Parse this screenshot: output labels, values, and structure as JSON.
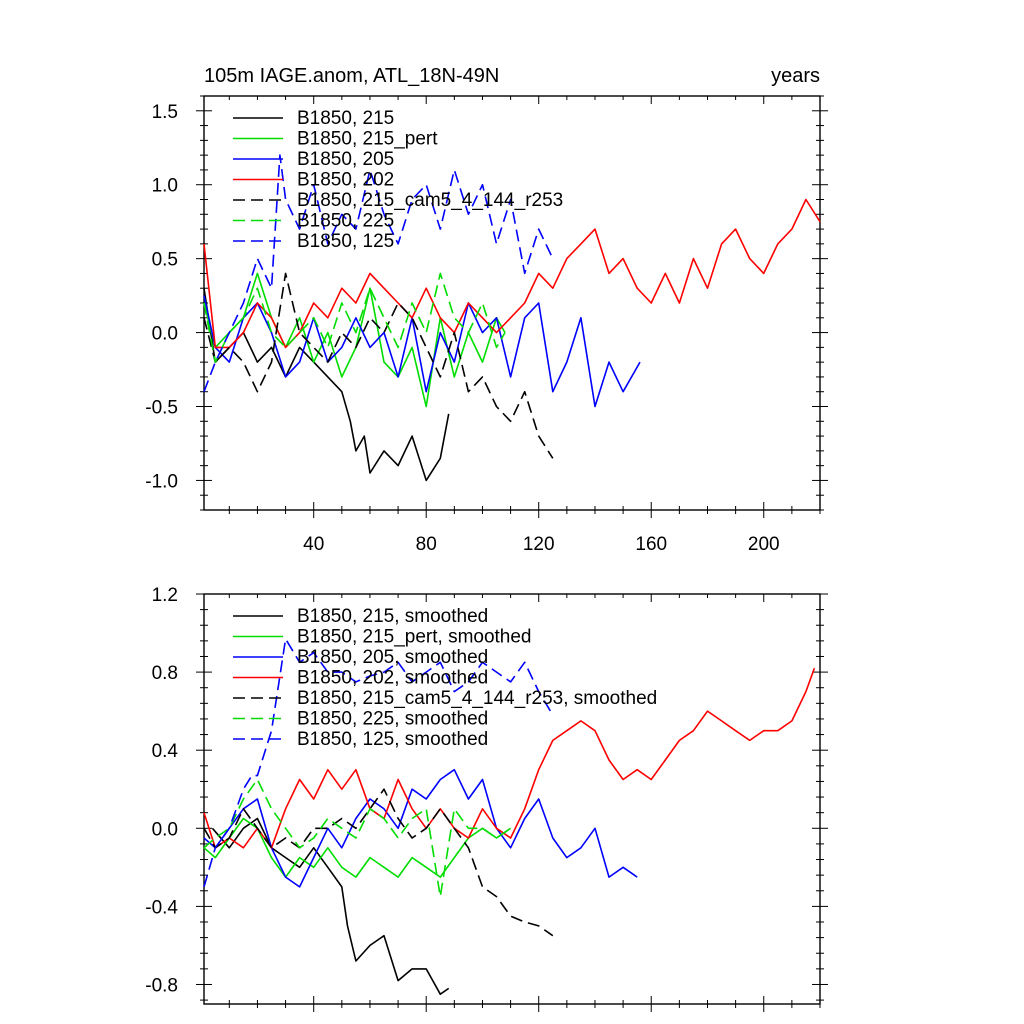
{
  "figure": {
    "title_left": "105m IAGE.anom, ATL_18N-49N",
    "title_right": "years"
  },
  "chart_data": [
    {
      "type": "line",
      "panel": "top",
      "title": "105m IAGE.anom, ATL_18N-49N",
      "xlabel": "years",
      "ylabel": "",
      "xlim": [
        1,
        220
      ],
      "ylim": [
        -1.2,
        1.6
      ],
      "xticks": [
        40,
        80,
        120,
        160,
        200
      ],
      "xtick_labels": [
        "40",
        "80",
        "120",
        "160",
        "200"
      ],
      "yticks": [
        -1.0,
        -0.5,
        0.0,
        0.5,
        1.0,
        1.5
      ],
      "ytick_labels": [
        "-1.0",
        "-0.5",
        "0.0",
        "0.5",
        "1.0",
        "1.5"
      ],
      "legend_position": "top-left",
      "series": [
        {
          "name": "B1850, 215",
          "color": "#000000",
          "dash": "solid",
          "x": [
            1,
            5,
            10,
            15,
            20,
            25,
            30,
            35,
            40,
            45,
            50,
            53,
            55,
            58,
            60,
            65,
            70,
            75,
            80,
            85,
            88
          ],
          "y": [
            0.3,
            -0.2,
            -0.1,
            0.0,
            -0.2,
            -0.1,
            -0.3,
            -0.1,
            -0.2,
            -0.3,
            -0.4,
            -0.6,
            -0.8,
            -0.7,
            -0.95,
            -0.8,
            -0.9,
            -0.7,
            -1.0,
            -0.85,
            -0.55
          ]
        },
        {
          "name": "B1850, 215_pert",
          "color": "#00dd00",
          "dash": "solid",
          "x": [
            1,
            5,
            10,
            15,
            20,
            25,
            30,
            35,
            40,
            45,
            50,
            55,
            60,
            65,
            70,
            75,
            80,
            85,
            90,
            95,
            100,
            105,
            108
          ],
          "y": [
            0.2,
            -0.1,
            0.0,
            0.1,
            0.4,
            0.1,
            -0.1,
            0.1,
            -0.2,
            0.0,
            -0.3,
            -0.1,
            0.3,
            -0.2,
            -0.3,
            -0.1,
            -0.5,
            0.1,
            -0.3,
            0.0,
            -0.2,
            0.1,
            0.0
          ]
        },
        {
          "name": "B1850, 205",
          "color": "#0000ff",
          "dash": "solid",
          "x": [
            1,
            5,
            10,
            15,
            20,
            25,
            30,
            35,
            40,
            45,
            50,
            55,
            60,
            65,
            70,
            75,
            80,
            85,
            90,
            95,
            100,
            105,
            110,
            115,
            120,
            125,
            130,
            135,
            140,
            145,
            150,
            156
          ],
          "y": [
            0.25,
            -0.1,
            -0.2,
            0.1,
            0.2,
            0.0,
            -0.3,
            -0.2,
            0.1,
            -0.2,
            -0.1,
            0.1,
            -0.1,
            0.0,
            -0.3,
            0.1,
            -0.4,
            0.0,
            -0.2,
            0.2,
            0.0,
            0.1,
            -0.3,
            0.1,
            0.2,
            -0.4,
            -0.2,
            0.1,
            -0.5,
            -0.2,
            -0.4,
            -0.2
          ]
        },
        {
          "name": "B1850, 202",
          "color": "#ff0000",
          "dash": "solid",
          "x": [
            1,
            5,
            10,
            15,
            20,
            25,
            30,
            35,
            40,
            45,
            50,
            55,
            60,
            65,
            70,
            75,
            80,
            85,
            90,
            95,
            100,
            105,
            110,
            115,
            120,
            125,
            130,
            135,
            140,
            145,
            150,
            155,
            160,
            165,
            170,
            175,
            180,
            185,
            190,
            195,
            200,
            205,
            210,
            215,
            220
          ],
          "y": [
            0.6,
            -0.1,
            -0.1,
            0.0,
            0.2,
            0.1,
            -0.1,
            0.0,
            0.2,
            0.1,
            0.3,
            0.2,
            0.4,
            0.3,
            0.2,
            0.1,
            0.3,
            0.1,
            0.0,
            0.2,
            0.1,
            0.0,
            0.1,
            0.2,
            0.4,
            0.3,
            0.5,
            0.6,
            0.7,
            0.4,
            0.5,
            0.3,
            0.2,
            0.4,
            0.2,
            0.5,
            0.3,
            0.6,
            0.7,
            0.5,
            0.4,
            0.6,
            0.7,
            0.9,
            0.75
          ]
        },
        {
          "name": "B1850, 215_cam5_4_144_r253",
          "color": "#000000",
          "dash": "dashed",
          "x": [
            1,
            5,
            10,
            15,
            20,
            25,
            30,
            35,
            40,
            45,
            50,
            55,
            60,
            65,
            70,
            75,
            80,
            85,
            90,
            95,
            100,
            105,
            110,
            115,
            120,
            125
          ],
          "y": [
            0.1,
            -0.2,
            -0.1,
            -0.2,
            -0.4,
            -0.2,
            0.4,
            0.0,
            -0.1,
            -0.2,
            0.0,
            -0.1,
            0.1,
            0.0,
            0.2,
            0.1,
            -0.1,
            -0.3,
            0.0,
            -0.4,
            -0.3,
            -0.5,
            -0.6,
            -0.4,
            -0.7,
            -0.85
          ]
        },
        {
          "name": "B1850, 225",
          "color": "#00dd00",
          "dash": "dashed",
          "x": [
            1,
            5,
            10,
            15,
            20,
            25,
            30,
            35,
            40,
            45,
            50,
            55,
            60,
            65,
            70,
            75,
            80,
            85,
            90,
            95,
            100,
            105,
            108
          ],
          "y": [
            0.2,
            -0.2,
            0.0,
            0.1,
            0.3,
            0.0,
            -0.1,
            0.0,
            0.1,
            -0.1,
            0.2,
            0.0,
            0.3,
            0.1,
            -0.1,
            0.2,
            0.0,
            0.4,
            0.1,
            0.0,
            0.2,
            -0.1,
            0.0
          ]
        },
        {
          "name": "B1850, 125",
          "color": "#0000ff",
          "dash": "dashed",
          "x": [
            1,
            5,
            10,
            15,
            20,
            25,
            28,
            30,
            35,
            40,
            45,
            50,
            55,
            60,
            65,
            70,
            75,
            80,
            85,
            90,
            95,
            100,
            105,
            110,
            115,
            120,
            125
          ],
          "y": [
            -0.4,
            -0.2,
            0.0,
            0.2,
            0.5,
            0.3,
            1.2,
            0.9,
            0.7,
            1.0,
            0.6,
            0.8,
            0.7,
            1.1,
            0.8,
            0.6,
            0.9,
            1.0,
            0.7,
            1.1,
            0.8,
            1.0,
            0.6,
            0.9,
            0.4,
            0.7,
            0.5
          ]
        }
      ]
    },
    {
      "type": "line",
      "panel": "bottom",
      "title": "",
      "xlabel": "",
      "ylabel": "",
      "xlim": [
        1,
        220
      ],
      "ylim": [
        -0.9,
        1.2
      ],
      "xticks": [
        40,
        80,
        120,
        160,
        200
      ],
      "xtick_labels": [],
      "yticks": [
        -0.8,
        -0.4,
        0.0,
        0.4,
        0.8,
        1.2
      ],
      "ytick_labels": [
        "-0.8",
        "-0.4",
        "0.0",
        "0.4",
        "0.8",
        "1.2"
      ],
      "legend_position": "top-left",
      "series": [
        {
          "name": "B1850, 215, smoothed",
          "color": "#000000",
          "dash": "solid",
          "x": [
            4,
            10,
            15,
            20,
            25,
            30,
            35,
            40,
            45,
            50,
            52,
            55,
            60,
            65,
            70,
            75,
            80,
            85,
            88
          ],
          "y": [
            0.0,
            -0.1,
            0.0,
            0.05,
            -0.1,
            -0.15,
            -0.2,
            -0.1,
            -0.2,
            -0.3,
            -0.5,
            -0.68,
            -0.6,
            -0.55,
            -0.78,
            -0.72,
            -0.72,
            -0.85,
            -0.82
          ]
        },
        {
          "name": "B1850, 215_pert, smoothed",
          "color": "#00dd00",
          "dash": "solid",
          "x": [
            1,
            5,
            10,
            15,
            20,
            25,
            30,
            35,
            40,
            45,
            50,
            55,
            60,
            65,
            70,
            75,
            80,
            85,
            90,
            95,
            100,
            105,
            110
          ],
          "y": [
            -0.1,
            -0.15,
            -0.05,
            0.05,
            0.0,
            -0.15,
            -0.25,
            -0.15,
            -0.2,
            -0.1,
            -0.2,
            -0.25,
            -0.15,
            -0.2,
            -0.25,
            -0.15,
            -0.2,
            -0.25,
            -0.15,
            -0.05,
            0.0,
            -0.05,
            0.0
          ]
        },
        {
          "name": "B1850, 205, smoothed",
          "color": "#0000ff",
          "dash": "solid",
          "x": [
            1,
            5,
            10,
            15,
            20,
            25,
            30,
            35,
            40,
            45,
            50,
            55,
            60,
            65,
            70,
            75,
            80,
            85,
            90,
            95,
            100,
            105,
            110,
            115,
            120,
            125,
            130,
            135,
            140,
            145,
            150,
            155
          ],
          "y": [
            -0.05,
            -0.1,
            0.0,
            0.1,
            0.15,
            -0.1,
            -0.25,
            -0.3,
            -0.15,
            0.0,
            -0.1,
            0.05,
            0.15,
            0.1,
            0.0,
            0.2,
            0.15,
            0.25,
            0.3,
            0.15,
            0.25,
            0.0,
            -0.1,
            0.05,
            0.15,
            -0.05,
            -0.15,
            -0.1,
            0.0,
            -0.25,
            -0.2,
            -0.25
          ]
        },
        {
          "name": "B1850, 202, smoothed",
          "color": "#ff0000",
          "dash": "solid",
          "x": [
            1,
            5,
            10,
            15,
            20,
            25,
            30,
            35,
            40,
            45,
            50,
            55,
            60,
            65,
            70,
            75,
            80,
            85,
            90,
            95,
            100,
            105,
            110,
            115,
            120,
            125,
            130,
            135,
            140,
            145,
            150,
            155,
            160,
            165,
            170,
            175,
            180,
            185,
            190,
            195,
            200,
            205,
            210,
            215,
            218
          ],
          "y": [
            0.08,
            -0.1,
            -0.05,
            -0.1,
            0.0,
            -0.1,
            0.1,
            0.25,
            0.15,
            0.3,
            0.2,
            0.3,
            0.1,
            0.05,
            0.25,
            0.1,
            0.0,
            0.1,
            0.0,
            -0.05,
            0.1,
            0.0,
            -0.05,
            0.1,
            0.3,
            0.45,
            0.5,
            0.55,
            0.5,
            0.35,
            0.25,
            0.3,
            0.25,
            0.35,
            0.45,
            0.5,
            0.6,
            0.55,
            0.5,
            0.45,
            0.5,
            0.5,
            0.55,
            0.7,
            0.82
          ]
        },
        {
          "name": "B1850, 215_cam5_4_144_r253, smoothed",
          "color": "#000000",
          "dash": "dashed",
          "x": [
            1,
            5,
            10,
            15,
            20,
            25,
            30,
            35,
            40,
            45,
            50,
            55,
            60,
            65,
            70,
            75,
            80,
            85,
            90,
            95,
            100,
            105,
            110,
            115,
            120,
            125
          ],
          "y": [
            0.0,
            -0.1,
            -0.05,
            0.1,
            0.0,
            -0.1,
            -0.05,
            -0.1,
            0.0,
            0.0,
            0.05,
            0.0,
            0.1,
            0.2,
            0.05,
            -0.05,
            0.0,
            0.1,
            0.0,
            -0.1,
            -0.3,
            -0.35,
            -0.45,
            -0.48,
            -0.5,
            -0.55
          ]
        },
        {
          "name": "B1850, 225, smoothed",
          "color": "#00dd00",
          "dash": "dashed",
          "x": [
            1,
            5,
            10,
            15,
            20,
            25,
            30,
            35,
            40,
            45,
            50,
            55,
            60,
            65,
            70,
            75,
            80,
            85,
            90,
            95,
            100,
            105,
            110
          ],
          "y": [
            -0.1,
            -0.05,
            0.0,
            0.15,
            0.25,
            0.1,
            0.0,
            -0.1,
            -0.05,
            0.05,
            0.0,
            -0.05,
            0.1,
            0.05,
            -0.05,
            0.05,
            0.1,
            -0.35,
            0.1,
            0.0,
            0.0,
            -0.05,
            0.0
          ]
        },
        {
          "name": "B1850, 125, smoothed",
          "color": "#0000ff",
          "dash": "dashed",
          "x": [
            1,
            5,
            10,
            15,
            18,
            20,
            25,
            30,
            35,
            40,
            45,
            50,
            55,
            60,
            65,
            70,
            75,
            80,
            85,
            90,
            95,
            100,
            105,
            110,
            115,
            120,
            125
          ],
          "y": [
            -0.3,
            -0.1,
            0.0,
            0.2,
            0.27,
            0.27,
            0.5,
            0.97,
            0.85,
            0.9,
            0.8,
            0.8,
            0.75,
            0.78,
            0.8,
            0.85,
            0.75,
            0.8,
            0.85,
            0.7,
            0.75,
            0.85,
            0.8,
            0.75,
            0.85,
            0.7,
            0.58
          ]
        }
      ]
    }
  ]
}
